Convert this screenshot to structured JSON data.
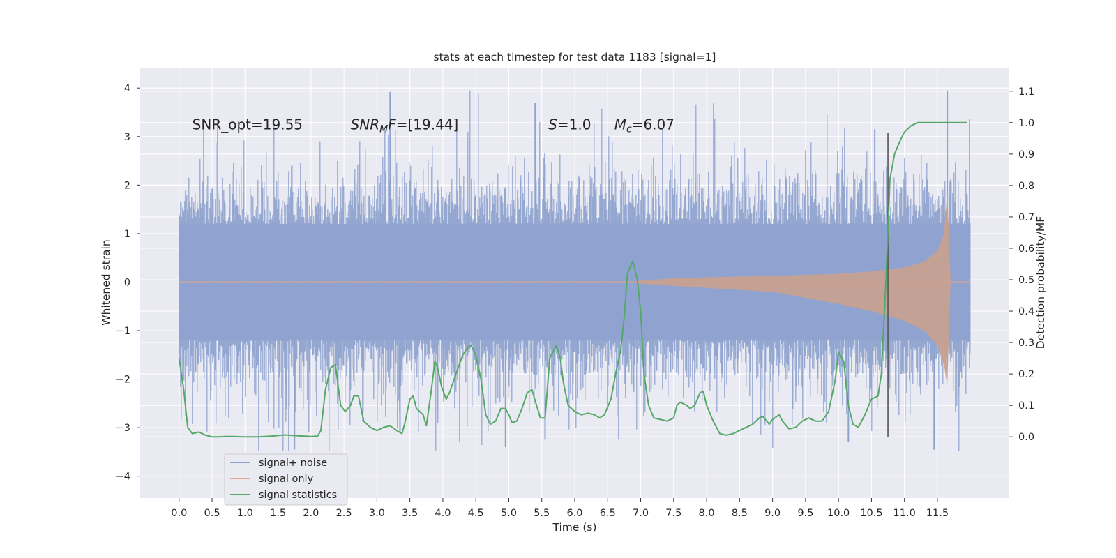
{
  "chart_data": {
    "type": "line",
    "title": "stats at each timestep for test data 1183 [signal=1]",
    "xlabel": "Time (s)",
    "ylabel": "Whitened strain",
    "ylabel_right": "Detection probability/MF",
    "xlim": [
      -0.59,
      12.59
    ],
    "ylim": [
      -4.45,
      4.42
    ],
    "ylim_right": [
      -0.195,
      1.175
    ],
    "xticks": [
      0.0,
      0.5,
      1.0,
      1.5,
      2.0,
      2.5,
      3.0,
      3.5,
      4.0,
      4.5,
      5.0,
      5.5,
      6.0,
      6.5,
      7.0,
      7.5,
      8.0,
      8.5,
      9.0,
      9.5,
      10.0,
      10.5,
      11.0,
      11.5
    ],
    "xtick_labels": [
      "0.0",
      "0.5",
      "1.0",
      "1.5",
      "2.0",
      "2.5",
      "3.0",
      "3.5",
      "4.0",
      "4.5",
      "5.0",
      "5.5",
      "6.0",
      "6.5",
      "7.0",
      "7.5",
      "8.0",
      "8.5",
      "9.0",
      "9.5",
      "10.0",
      "10.5",
      "11.0",
      "11.5"
    ],
    "yticks": [
      -4,
      -3,
      -2,
      -1,
      0,
      1,
      2,
      3,
      4
    ],
    "ytick_labels": [
      "−4",
      "−3",
      "−2",
      "−1",
      "0",
      "1",
      "2",
      "3",
      "4"
    ],
    "yticks_right": [
      0.0,
      0.1,
      0.2,
      0.3,
      0.4,
      0.5,
      0.6,
      0.7,
      0.8,
      0.9,
      1.0,
      1.1
    ],
    "ytick_labels_right": [
      "0.0",
      "0.1",
      "0.2",
      "0.3",
      "0.4",
      "0.5",
      "0.6",
      "0.7",
      "0.8",
      "0.9",
      "1.0",
      "1.1"
    ],
    "grid": true,
    "legend_position": "bottom-left",
    "annotations": [
      {
        "x": 0.2,
        "y": 3.15,
        "parts": [
          {
            "t": "SNR_opt=19.55",
            "style": "normal"
          }
        ]
      },
      {
        "x": 2.6,
        "y": 3.15,
        "parts": [
          {
            "t": "SNR",
            "style": "italic"
          },
          {
            "t": "M",
            "style": "italic-sub"
          },
          {
            "t": "F",
            "style": "italic"
          },
          {
            "t": "=[19.44]",
            "style": "normal"
          }
        ]
      },
      {
        "x": 5.6,
        "y": 3.15,
        "parts": [
          {
            "t": "S",
            "style": "italic"
          },
          {
            "t": "=1.0",
            "style": "normal"
          }
        ]
      },
      {
        "x": 6.6,
        "y": 3.15,
        "parts": [
          {
            "t": "M",
            "style": "italic"
          },
          {
            "t": "c",
            "style": "italic-sub"
          },
          {
            "t": "=6.07",
            "style": "normal"
          }
        ]
      }
    ],
    "vertical_line": {
      "x": 10.75,
      "y_range": [
        -3.2,
        3.07
      ],
      "color": "#555555"
    },
    "series": [
      {
        "name": "signal+ noise",
        "axis": "left",
        "kind": "noise",
        "color": "#8fa3cf",
        "x_range": [
          0.0,
          12.0
        ],
        "envelope_sigma": 1.0,
        "max_excursion": 3.95,
        "min_excursion": -3.48
      },
      {
        "name": "signal only",
        "axis": "left",
        "kind": "chirp",
        "color": "#e3a68a",
        "fill_color": "#c9a18f",
        "x_range": [
          0.0,
          12.0
        ],
        "envelope": [
          [
            6.8,
            0.0
          ],
          [
            7.0,
            0.03
          ],
          [
            7.5,
            0.08
          ],
          [
            8.0,
            0.1
          ],
          [
            9.0,
            0.13
          ],
          [
            10.0,
            0.17
          ],
          [
            10.5,
            0.22
          ],
          [
            11.0,
            0.3
          ],
          [
            11.3,
            0.42
          ],
          [
            11.5,
            0.65
          ],
          [
            11.6,
            1.0
          ],
          [
            11.65,
            1.85
          ],
          [
            11.68,
            0.8
          ],
          [
            11.7,
            0.0
          ]
        ],
        "envelope_neg": [
          [
            6.8,
            0.0
          ],
          [
            7.0,
            -0.03
          ],
          [
            7.5,
            -0.08
          ],
          [
            8.0,
            -0.12
          ],
          [
            9.0,
            -0.2
          ],
          [
            10.0,
            -0.45
          ],
          [
            10.5,
            -0.6
          ],
          [
            11.0,
            -0.8
          ],
          [
            11.3,
            -1.0
          ],
          [
            11.5,
            -1.3
          ],
          [
            11.6,
            -1.7
          ],
          [
            11.65,
            -2.15
          ],
          [
            11.68,
            -0.8
          ],
          [
            11.7,
            0.0
          ]
        ]
      },
      {
        "name": "signal statistics",
        "axis": "right",
        "kind": "line",
        "color": "#55a868",
        "points": [
          [
            0.0,
            0.25
          ],
          [
            0.07,
            0.15
          ],
          [
            0.13,
            0.03
          ],
          [
            0.2,
            0.01
          ],
          [
            0.3,
            0.015
          ],
          [
            0.4,
            0.005
          ],
          [
            0.5,
            0.0
          ],
          [
            0.6,
            0.0
          ],
          [
            0.7,
            0.001
          ],
          [
            0.8,
            0.001
          ],
          [
            1.0,
            0.0
          ],
          [
            1.2,
            0.0
          ],
          [
            1.4,
            0.002
          ],
          [
            1.6,
            0.006
          ],
          [
            1.8,
            0.003
          ],
          [
            2.0,
            0.001
          ],
          [
            2.1,
            0.002
          ],
          [
            2.15,
            0.02
          ],
          [
            2.22,
            0.15
          ],
          [
            2.3,
            0.22
          ],
          [
            2.37,
            0.23
          ],
          [
            2.45,
            0.1
          ],
          [
            2.52,
            0.08
          ],
          [
            2.6,
            0.1
          ],
          [
            2.65,
            0.13
          ],
          [
            2.72,
            0.13
          ],
          [
            2.8,
            0.05
          ],
          [
            2.9,
            0.03
          ],
          [
            3.0,
            0.02
          ],
          [
            3.1,
            0.03
          ],
          [
            3.2,
            0.035
          ],
          [
            3.3,
            0.02
          ],
          [
            3.38,
            0.01
          ],
          [
            3.42,
            0.04
          ],
          [
            3.5,
            0.12
          ],
          [
            3.55,
            0.13
          ],
          [
            3.6,
            0.09
          ],
          [
            3.7,
            0.07
          ],
          [
            3.75,
            0.035
          ],
          [
            3.82,
            0.14
          ],
          [
            3.88,
            0.24
          ],
          [
            3.92,
            0.22
          ],
          [
            3.98,
            0.16
          ],
          [
            4.05,
            0.12
          ],
          [
            4.1,
            0.14
          ],
          [
            4.2,
            0.2
          ],
          [
            4.3,
            0.26
          ],
          [
            4.38,
            0.285
          ],
          [
            4.43,
            0.29
          ],
          [
            4.5,
            0.26
          ],
          [
            4.58,
            0.18
          ],
          [
            4.65,
            0.07
          ],
          [
            4.72,
            0.04
          ],
          [
            4.8,
            0.05
          ],
          [
            4.88,
            0.09
          ],
          [
            4.95,
            0.09
          ],
          [
            5.0,
            0.07
          ],
          [
            5.05,
            0.045
          ],
          [
            5.12,
            0.05
          ],
          [
            5.2,
            0.09
          ],
          [
            5.28,
            0.14
          ],
          [
            5.35,
            0.15
          ],
          [
            5.42,
            0.1
          ],
          [
            5.48,
            0.06
          ],
          [
            5.55,
            0.06
          ],
          [
            5.62,
            0.25
          ],
          [
            5.72,
            0.29
          ],
          [
            5.78,
            0.25
          ],
          [
            5.83,
            0.17
          ],
          [
            5.9,
            0.1
          ],
          [
            6.0,
            0.08
          ],
          [
            6.1,
            0.07
          ],
          [
            6.2,
            0.075
          ],
          [
            6.3,
            0.07
          ],
          [
            6.38,
            0.06
          ],
          [
            6.45,
            0.07
          ],
          [
            6.55,
            0.12
          ],
          [
            6.62,
            0.2
          ],
          [
            6.7,
            0.28
          ],
          [
            6.75,
            0.38
          ],
          [
            6.8,
            0.52
          ],
          [
            6.88,
            0.56
          ],
          [
            6.95,
            0.5
          ],
          [
            7.0,
            0.4
          ],
          [
            7.05,
            0.2
          ],
          [
            7.12,
            0.1
          ],
          [
            7.2,
            0.06
          ],
          [
            7.3,
            0.055
          ],
          [
            7.4,
            0.05
          ],
          [
            7.5,
            0.06
          ],
          [
            7.55,
            0.1
          ],
          [
            7.6,
            0.11
          ],
          [
            7.7,
            0.1
          ],
          [
            7.75,
            0.09
          ],
          [
            7.82,
            0.1
          ],
          [
            7.9,
            0.14
          ],
          [
            7.95,
            0.145
          ],
          [
            8.0,
            0.1
          ],
          [
            8.1,
            0.05
          ],
          [
            8.2,
            0.01
          ],
          [
            8.3,
            0.005
          ],
          [
            8.4,
            0.01
          ],
          [
            8.5,
            0.02
          ],
          [
            8.6,
            0.03
          ],
          [
            8.7,
            0.04
          ],
          [
            8.8,
            0.06
          ],
          [
            8.85,
            0.065
          ],
          [
            8.95,
            0.04
          ],
          [
            9.0,
            0.055
          ],
          [
            9.1,
            0.07
          ],
          [
            9.15,
            0.05
          ],
          [
            9.25,
            0.025
          ],
          [
            9.35,
            0.03
          ],
          [
            9.45,
            0.05
          ],
          [
            9.55,
            0.06
          ],
          [
            9.65,
            0.05
          ],
          [
            9.75,
            0.05
          ],
          [
            9.85,
            0.08
          ],
          [
            9.95,
            0.18
          ],
          [
            10.0,
            0.27
          ],
          [
            10.08,
            0.24
          ],
          [
            10.15,
            0.1
          ],
          [
            10.22,
            0.04
          ],
          [
            10.3,
            0.03
          ],
          [
            10.4,
            0.07
          ],
          [
            10.5,
            0.12
          ],
          [
            10.6,
            0.13
          ],
          [
            10.65,
            0.2
          ],
          [
            10.72,
            0.5
          ],
          [
            10.78,
            0.82
          ],
          [
            10.85,
            0.9
          ],
          [
            10.95,
            0.95
          ],
          [
            11.0,
            0.97
          ],
          [
            11.1,
            0.99
          ],
          [
            11.2,
            1.0
          ],
          [
            11.5,
            1.0
          ],
          [
            11.95,
            1.0
          ]
        ]
      }
    ]
  }
}
